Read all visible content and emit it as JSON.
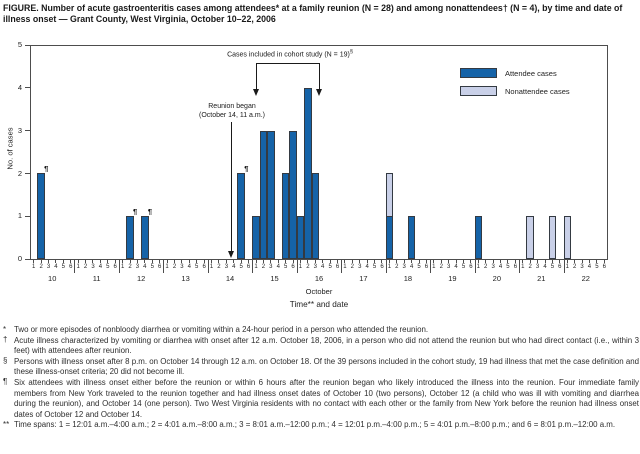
{
  "title": "FIGURE. Number of acute gastroenteritis cases among attendees* at a family reunion (N = 28) and among nonattendees† (N = 4), by time and date of illness onset — Grant County, West Virginia, October 10–22, 2006",
  "chart_data": {
    "type": "bar",
    "subtype": "stacked-epidemic-curve",
    "title": "Number of acute gastroenteritis cases among attendees at a family reunion (N = 28) and among nonattendees (N = 4), by time and date of illness onset",
    "ylabel": "No. of cases",
    "xlabel": "Time** and date",
    "month_label": "October",
    "ylim": [
      0,
      5
    ],
    "yticks": [
      0,
      1,
      2,
      3,
      4,
      5
    ],
    "grid": false,
    "legend_position": "top-right-inside",
    "days": [
      "10",
      "11",
      "12",
      "13",
      "14",
      "15",
      "16",
      "17",
      "18",
      "19",
      "20",
      "21",
      "22"
    ],
    "slots_per_day": [
      "1",
      "2",
      "3",
      "4",
      "5",
      "6"
    ],
    "legend": [
      {
        "label": "Attendee cases",
        "color": "#1563a8"
      },
      {
        "label": "Nonattendee cases",
        "color": "#c9d0e8"
      }
    ],
    "bars": [
      {
        "day": "10",
        "slot": 2,
        "attendee": 2,
        "nonattendee": 0,
        "mark": "¶"
      },
      {
        "day": "12",
        "slot": 2,
        "attendee": 1,
        "nonattendee": 0,
        "mark": "¶"
      },
      {
        "day": "12",
        "slot": 4,
        "attendee": 1,
        "nonattendee": 0,
        "mark": "¶"
      },
      {
        "day": "14",
        "slot": 5,
        "attendee": 2,
        "nonattendee": 0,
        "mark": "¶"
      },
      {
        "day": "15",
        "slot": 1,
        "attendee": 1,
        "nonattendee": 0
      },
      {
        "day": "15",
        "slot": 2,
        "attendee": 3,
        "nonattendee": 0
      },
      {
        "day": "15",
        "slot": 3,
        "attendee": 3,
        "nonattendee": 0
      },
      {
        "day": "15",
        "slot": 5,
        "attendee": 2,
        "nonattendee": 0
      },
      {
        "day": "15",
        "slot": 6,
        "attendee": 3,
        "nonattendee": 0
      },
      {
        "day": "16",
        "slot": 1,
        "attendee": 1,
        "nonattendee": 0
      },
      {
        "day": "16",
        "slot": 2,
        "attendee": 4,
        "nonattendee": 0
      },
      {
        "day": "16",
        "slot": 3,
        "attendee": 2,
        "nonattendee": 0
      },
      {
        "day": "18",
        "slot": 1,
        "attendee": 1,
        "nonattendee": 1
      },
      {
        "day": "18",
        "slot": 4,
        "attendee": 1,
        "nonattendee": 0
      },
      {
        "day": "20",
        "slot": 1,
        "attendee": 1,
        "nonattendee": 0
      },
      {
        "day": "21",
        "slot": 2,
        "attendee": 0,
        "nonattendee": 1
      },
      {
        "day": "21",
        "slot": 5,
        "attendee": 0,
        "nonattendee": 1
      },
      {
        "day": "22",
        "slot": 1,
        "attendee": 0,
        "nonattendee": 1
      }
    ],
    "annotations": {
      "cohort_bracket": {
        "label": "Cases included in cohort study (N = 19)",
        "label_sup": "§",
        "from": {
          "day": "15",
          "slot": 1
        },
        "to": {
          "day": "16",
          "slot": 3
        }
      },
      "reunion_arrow": {
        "line1": "Reunion began",
        "line2": "(October 14, 11 a.m.)",
        "at": {
          "day": "14",
          "slot": 3.6
        }
      }
    }
  },
  "footnotes": [
    {
      "marker": "*",
      "text": "Two or more episodes of nonbloody diarrhea or vomiting within a 24-hour period in a person who attended the reunion."
    },
    {
      "marker": "†",
      "text": "Acute illness characterized by vomiting or diarrhea with onset after 12 a.m. October 18, 2006, in a person who did not attend the reunion but who had direct contact (i.e., within 3 feet) with attendees after reunion."
    },
    {
      "marker": "§",
      "text": "Persons with illness onset after 8 p.m. on October 14 through 12 a.m. on October 18. Of the 39 persons included in the cohort study, 19 had illness that met the case definition and these illness-onset criteria; 20 did not become ill."
    },
    {
      "marker": "¶",
      "text": "Six attendees with illness onset either before the reunion or within 6 hours after the reunion began who likely introduced the illness into the reunion. Four immediate family members from New York traveled to the reunion together and had illness onset dates of October 10 (two persons), October 12 (a child who was ill with vomiting and diarrhea during the reunion), and October 14 (one person). Two West Virginia residents with no contact with each other or the family from New York before the reunion had illness onset dates of October 12 and October 14."
    },
    {
      "marker": "**",
      "text": "Time spans: 1 = 12:01 a.m.–4:00 a.m.; 2 = 4:01 a.m.–8:00 a.m.; 3 = 8:01 a.m.–12:00 p.m.; 4 = 12:01 p.m.–4:00 p.m.; 5 = 4:01 p.m.–8:00 p.m.; and 6 = 8:01 p.m.–12:00 a.m."
    }
  ]
}
